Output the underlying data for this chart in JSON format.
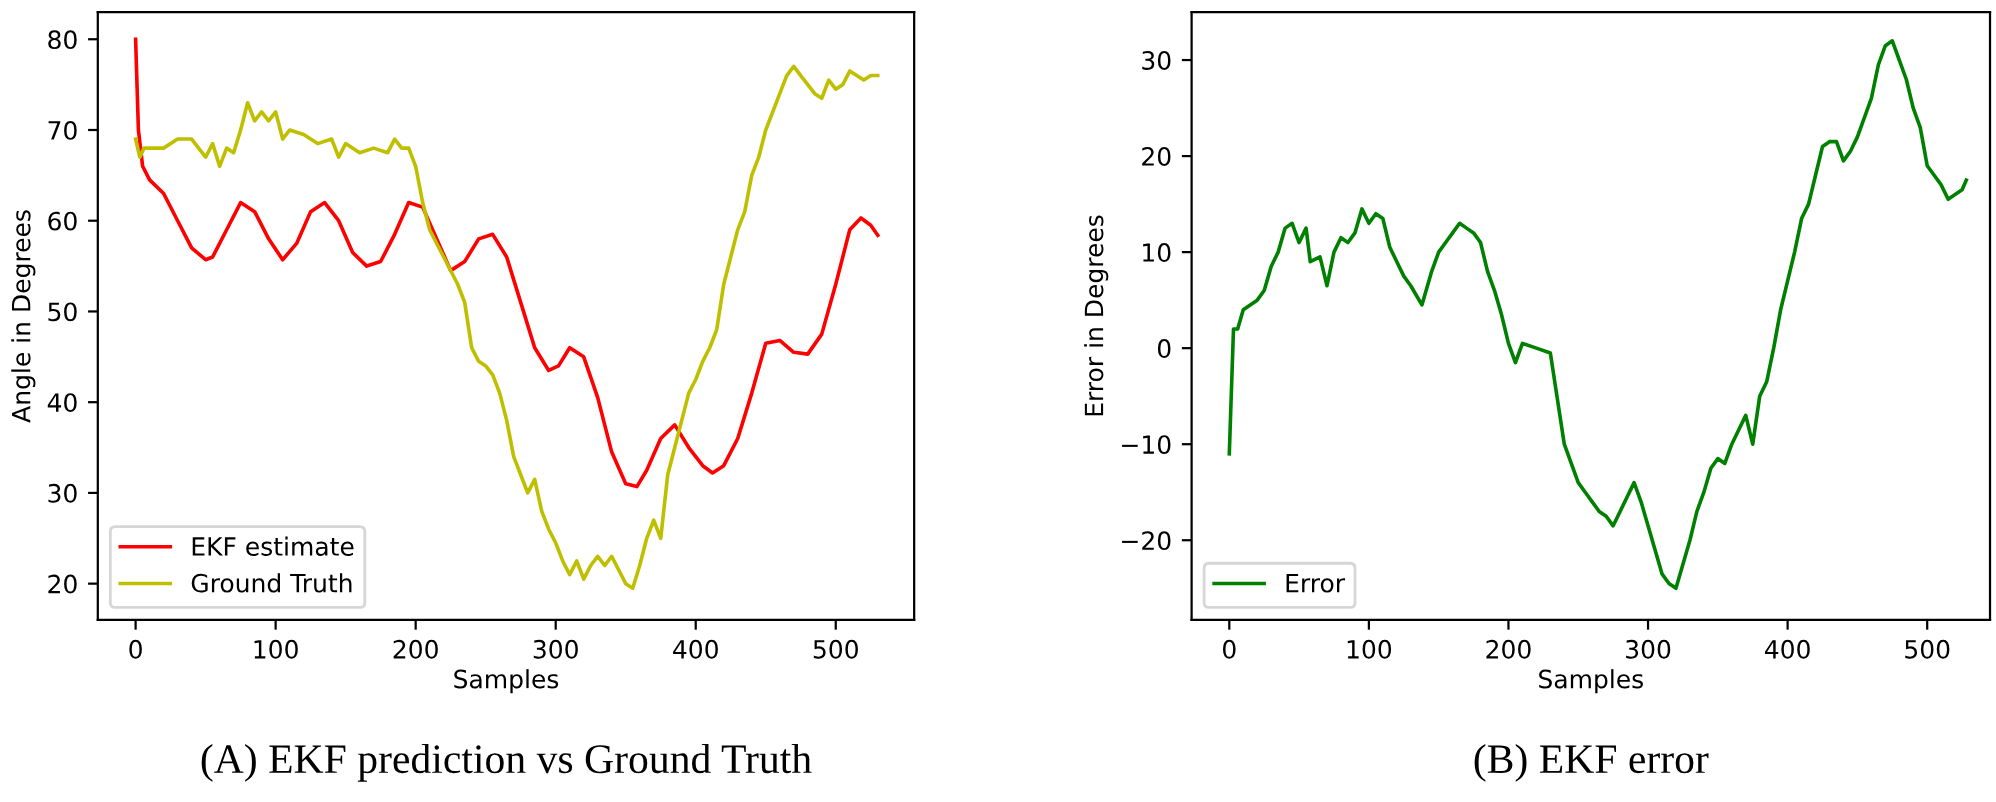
{
  "chart_data": [
    {
      "type": "line",
      "xlabel": "Samples",
      "ylabel": "Angle in Degrees",
      "annotations": [
        "(A) EKF prediction vs Ground Truth"
      ],
      "xlim": [
        -27,
        556
      ],
      "ylim": [
        16,
        83
      ],
      "xticks": [
        0,
        100,
        200,
        300,
        400,
        500
      ],
      "yticks": [
        20,
        30,
        40,
        50,
        60,
        70,
        80
      ],
      "grid": false,
      "legend": "bottom left",
      "series": [
        {
          "name": "EKF estimate",
          "color": "#ff0000",
          "x": [
            0,
            2,
            5,
            10,
            20,
            30,
            40,
            50,
            55,
            65,
            75,
            85,
            95,
            105,
            115,
            125,
            135,
            145,
            155,
            165,
            175,
            185,
            195,
            205,
            215,
            225,
            235,
            245,
            255,
            265,
            275,
            285,
            295,
            302,
            310,
            320,
            330,
            340,
            350,
            358,
            365,
            375,
            385,
            395,
            405,
            412,
            420,
            430,
            440,
            450,
            460,
            470,
            480,
            490,
            500,
            510,
            518,
            525,
            530
          ],
          "values": [
            80,
            70,
            66,
            64.5,
            63,
            60,
            57,
            55.7,
            56,
            59,
            62,
            61,
            58,
            55.7,
            57.5,
            61,
            62,
            60,
            56.5,
            55,
            55.5,
            58.5,
            62,
            61.5,
            58,
            54.5,
            55.5,
            58,
            58.5,
            56,
            51,
            46,
            43.5,
            44,
            46,
            45,
            40.5,
            34.5,
            31,
            30.7,
            32.5,
            36,
            37.5,
            35,
            33,
            32.2,
            33,
            36,
            41,
            46.5,
            46.8,
            45.5,
            45.3,
            47.5,
            53,
            59,
            60.3,
            59.5,
            58.4
          ]
        },
        {
          "name": "Ground Truth",
          "color": "#bfbf00",
          "x": [
            0,
            3,
            6,
            20,
            30,
            40,
            50,
            55,
            60,
            65,
            70,
            75,
            80,
            85,
            90,
            95,
            100,
            105,
            110,
            120,
            130,
            140,
            145,
            150,
            160,
            170,
            180,
            185,
            190,
            195,
            200,
            205,
            210,
            220,
            230,
            235,
            240,
            245,
            250,
            255,
            260,
            265,
            270,
            275,
            280,
            285,
            290,
            295,
            300,
            305,
            310,
            315,
            320,
            325,
            330,
            335,
            340,
            345,
            350,
            355,
            360,
            365,
            370,
            375,
            380,
            385,
            390,
            395,
            400,
            405,
            410,
            415,
            420,
            425,
            430,
            435,
            440,
            445,
            450,
            455,
            460,
            465,
            470,
            475,
            480,
            485,
            490,
            495,
            500,
            505,
            510,
            515,
            520,
            525,
            530
          ],
          "values": [
            69,
            67,
            68,
            68,
            69,
            69,
            67,
            68.5,
            66,
            68,
            67.5,
            70,
            73,
            71,
            72,
            71,
            72,
            69,
            70,
            69.5,
            68.5,
            69,
            67,
            68.5,
            67.5,
            68,
            67.5,
            69,
            68,
            68,
            66,
            62,
            59,
            56,
            53,
            51,
            46,
            44.5,
            44,
            43,
            41,
            38,
            34,
            32,
            30,
            31.5,
            28,
            26,
            24.5,
            22.5,
            21,
            22.5,
            20.5,
            22,
            23,
            22,
            23,
            21.5,
            20,
            19.5,
            22,
            25,
            27,
            25,
            32,
            35,
            38,
            41,
            42.5,
            44.5,
            46,
            48,
            53,
            56,
            59,
            61,
            65,
            67,
            70,
            72,
            74,
            76,
            77,
            76,
            75,
            74,
            73.5,
            75.5,
            74.5,
            75,
            76.5,
            76,
            75.5,
            76,
            76
          ]
        }
      ]
    },
    {
      "type": "line",
      "xlabel": "Samples",
      "ylabel": "Error in Degrees",
      "annotations": [
        "(B) EKF error"
      ],
      "xlim": [
        -27,
        545
      ],
      "ylim": [
        -28.3,
        35
      ],
      "xticks": [
        0,
        100,
        200,
        300,
        400,
        500
      ],
      "yticks": [
        {
          "value": -20,
          "label": "−20"
        },
        {
          "value": -10,
          "label": "−10"
        },
        0,
        10,
        20,
        30
      ],
      "grid": false,
      "legend": "bottom left",
      "series": [
        {
          "name": "Error",
          "color": "#008000",
          "x": [
            0,
            3,
            6,
            10,
            20,
            25,
            30,
            35,
            40,
            45,
            50,
            55,
            58,
            65,
            70,
            75,
            80,
            85,
            90,
            95,
            100,
            105,
            110,
            115,
            120,
            125,
            130,
            138,
            145,
            150,
            155,
            160,
            165,
            170,
            175,
            180,
            185,
            190,
            195,
            200,
            205,
            210,
            220,
            230,
            240,
            245,
            250,
            255,
            260,
            265,
            270,
            275,
            280,
            285,
            290,
            295,
            300,
            305,
            310,
            315,
            320,
            325,
            330,
            335,
            340,
            345,
            350,
            355,
            360,
            365,
            370,
            375,
            380,
            385,
            390,
            395,
            400,
            405,
            410,
            415,
            420,
            425,
            430,
            435,
            440,
            445,
            450,
            455,
            460,
            465,
            470,
            475,
            480,
            485,
            490,
            495,
            500,
            505,
            510,
            515,
            520,
            525,
            528
          ],
          "values": [
            -11,
            2,
            2,
            4,
            5,
            6,
            8.5,
            10,
            12.5,
            13,
            11,
            12.5,
            9,
            9.5,
            6.5,
            10,
            11.5,
            11,
            12,
            14.5,
            13,
            14,
            13.5,
            10.5,
            9,
            7.5,
            6.5,
            4.5,
            8,
            10,
            11,
            12,
            13,
            12.5,
            12,
            11,
            8,
            6,
            3.5,
            0.5,
            -1.5,
            0.5,
            0,
            -0.5,
            -10,
            -12,
            -14,
            -15,
            -16,
            -17,
            -17.5,
            -18.5,
            -17,
            -15.5,
            -14,
            -16,
            -18.5,
            -21,
            -23.5,
            -24.5,
            -25,
            -22.5,
            -20,
            -17,
            -15,
            -12.5,
            -11.5,
            -12,
            -10,
            -8.5,
            -7,
            -10,
            -5,
            -3.5,
            0,
            4,
            7,
            10,
            13.5,
            15,
            18,
            21,
            21.5,
            21.5,
            19.5,
            20.5,
            22,
            24,
            26,
            29.5,
            31.5,
            32,
            30,
            28,
            25,
            23,
            19,
            18,
            17,
            15.5,
            16,
            16.5,
            17.5
          ]
        }
      ]
    }
  ]
}
